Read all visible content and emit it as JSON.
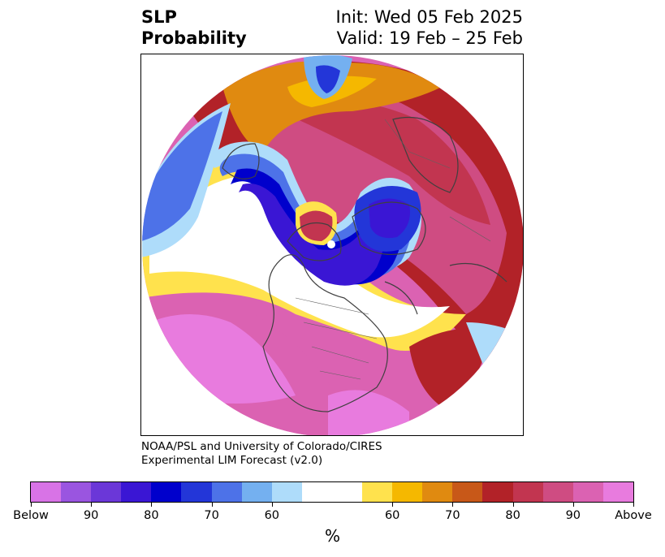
{
  "title": {
    "left_line1": "SLP",
    "left_line2": "Probability",
    "right_line1": "Init: Wed 05 Feb 2025",
    "right_line2": "Valid: 19 Feb – 25 Feb"
  },
  "credit": {
    "line1": "NOAA/PSL and University of Colorado/CIRES",
    "line2": "Experimental LIM Forecast (v2.0)"
  },
  "colorbar": {
    "units": "%",
    "tick_labels": [
      "Below",
      "90",
      "80",
      "70",
      "60",
      "60",
      "70",
      "80",
      "90",
      "Above"
    ],
    "colors": [
      "#d873e6",
      "#9a55e0",
      "#6b37d8",
      "#3a16d4",
      "#0000cc",
      "#2336d8",
      "#4d72e8",
      "#74b0f0",
      "#aedcfa",
      "#ffffff",
      "#ffe24d",
      "#f5b800",
      "#e08a10",
      "#c85818",
      "#b22228",
      "#c23550",
      "#cf4c82",
      "#db62b2",
      "#e87bde"
    ]
  },
  "map": {
    "projection": "north-polar-stereographic",
    "palette": {
      "ocean_pink": "#e87bde",
      "pink2": "#db62b2",
      "pink3": "#cf4c82",
      "crimson": "#c23550",
      "red": "#b22228",
      "orange": "#e08a10",
      "gold": "#f5b800",
      "yellow": "#ffe24d",
      "lightblue": "#aedcfa",
      "sky": "#74b0f0",
      "blue": "#4d72e8",
      "royal": "#2336d8",
      "deep": "#0000cc",
      "indigo": "#3a16d4",
      "coast": "#404040"
    }
  }
}
